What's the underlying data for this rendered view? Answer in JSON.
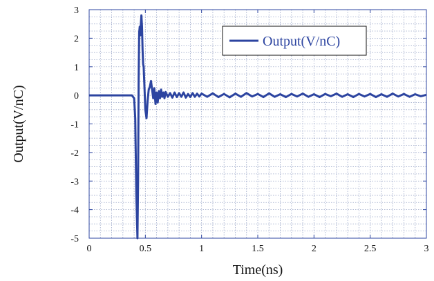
{
  "chart_data": {
    "type": "line",
    "title": "",
    "xlabel": "Time(ns)",
    "ylabel": "Output(V/nC)",
    "xlim": [
      0,
      3
    ],
    "ylim": [
      -5,
      3
    ],
    "grid": true,
    "grid_style": "dotted",
    "legend_position": "top-right",
    "x_ticks": [
      0,
      0.5,
      1,
      1.5,
      2,
      2.5,
      3
    ],
    "x_tick_labels": [
      "0",
      "0.5",
      "1",
      "1.5",
      "2",
      "2.5",
      "3"
    ],
    "y_ticks": [
      -5,
      -4,
      -3,
      -2,
      -1,
      0,
      1,
      2,
      3
    ],
    "y_tick_labels": [
      "-5",
      "-4",
      "-3",
      "-2",
      "-1",
      "0",
      "1",
      "2",
      "3"
    ],
    "colors": {
      "series": "#2c44a0",
      "axis": "#2c44a0",
      "grid": "#9aa6c8"
    },
    "series": [
      {
        "name": "Output(V/nC)",
        "x": [
          0,
          0.1,
          0.2,
          0.3,
          0.38,
          0.4,
          0.41,
          0.42,
          0.43,
          0.435,
          0.44,
          0.445,
          0.45,
          0.455,
          0.46,
          0.465,
          0.47,
          0.475,
          0.48,
          0.485,
          0.49,
          0.5,
          0.51,
          0.52,
          0.53,
          0.54,
          0.55,
          0.56,
          0.57,
          0.58,
          0.59,
          0.6,
          0.61,
          0.62,
          0.63,
          0.64,
          0.65,
          0.66,
          0.67,
          0.68,
          0.7,
          0.72,
          0.74,
          0.76,
          0.78,
          0.8,
          0.82,
          0.84,
          0.86,
          0.88,
          0.9,
          0.92,
          0.94,
          0.96,
          0.98,
          1.0,
          1.05,
          1.1,
          1.15,
          1.2,
          1.25,
          1.3,
          1.35,
          1.4,
          1.45,
          1.5,
          1.55,
          1.6,
          1.65,
          1.7,
          1.75,
          1.8,
          1.85,
          1.9,
          1.95,
          2.0,
          2.05,
          2.1,
          2.15,
          2.2,
          2.25,
          2.3,
          2.35,
          2.4,
          2.45,
          2.5,
          2.55,
          2.6,
          2.65,
          2.7,
          2.75,
          2.8,
          2.85,
          2.9,
          2.95,
          3.0
        ],
        "y": [
          0,
          0,
          0,
          0,
          0,
          -0.1,
          -0.8,
          -3.5,
          -5.0,
          -3.0,
          0.5,
          2.2,
          2.4,
          2.1,
          2.5,
          2.8,
          2.4,
          1.6,
          1.1,
          1.0,
          0.5,
          -0.5,
          -0.8,
          -0.2,
          0.2,
          0.3,
          0.5,
          0.2,
          -0.1,
          0.25,
          -0.3,
          0.1,
          -0.25,
          0.15,
          -0.1,
          0.2,
          -0.05,
          0.1,
          -0.1,
          0.12,
          -0.05,
          0.08,
          -0.08,
          0.1,
          -0.06,
          0.08,
          -0.05,
          0.1,
          -0.08,
          0.05,
          -0.06,
          0.08,
          -0.05,
          0.06,
          -0.04,
          0.06,
          -0.05,
          0.07,
          -0.06,
          0.05,
          -0.07,
          0.06,
          -0.05,
          0.08,
          -0.04,
          0.05,
          -0.06,
          0.07,
          -0.05,
          0.04,
          -0.06,
          0.05,
          -0.04,
          0.06,
          -0.05,
          0.04,
          -0.06,
          0.05,
          -0.03,
          0.06,
          -0.05,
          0.04,
          -0.06,
          0.05,
          -0.04,
          0.05,
          -0.06,
          0.04,
          -0.05,
          0.06,
          -0.04,
          0.05,
          -0.05,
          0.04,
          -0.03,
          0.02
        ]
      }
    ]
  }
}
